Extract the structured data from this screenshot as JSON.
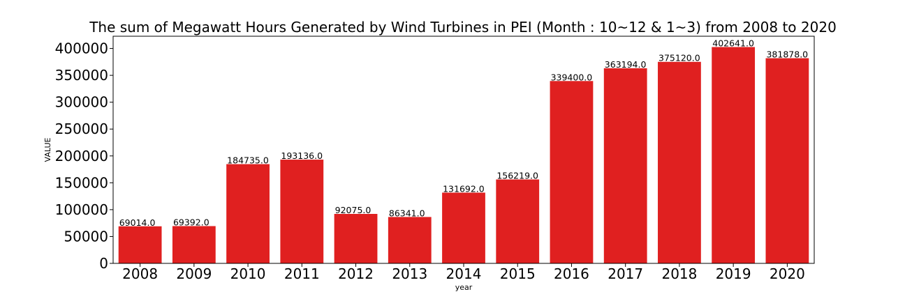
{
  "chart_data": {
    "type": "bar",
    "title": "The sum of Megawatt Hours Generated by Wind Turbines in PEI (Month : 10~12 & 1~3) from 2008 to 2020",
    "xlabel": "year",
    "ylabel": "VALUE",
    "categories": [
      "2008",
      "2009",
      "2010",
      "2011",
      "2012",
      "2013",
      "2014",
      "2015",
      "2016",
      "2017",
      "2018",
      "2019",
      "2020"
    ],
    "values": [
      69014.0,
      69392.0,
      184735.0,
      193136.0,
      92075.0,
      86341.0,
      131692.0,
      156219.0,
      339400.0,
      363194.0,
      375120.0,
      402641.0,
      381878.0
    ],
    "data_labels": [
      "69014.0",
      "69392.0",
      "184735.0",
      "193136.0",
      "92075.0",
      "86341.0",
      "131692.0",
      "156219.0",
      "339400.0",
      "363194.0",
      "375120.0",
      "402641.0",
      "381878.0"
    ],
    "yticks": [
      0,
      50000,
      100000,
      150000,
      200000,
      250000,
      300000,
      350000,
      400000
    ],
    "ylim": [
      0,
      422773
    ],
    "bar_color": "#e02020",
    "grid": false,
    "legend": "none"
  }
}
